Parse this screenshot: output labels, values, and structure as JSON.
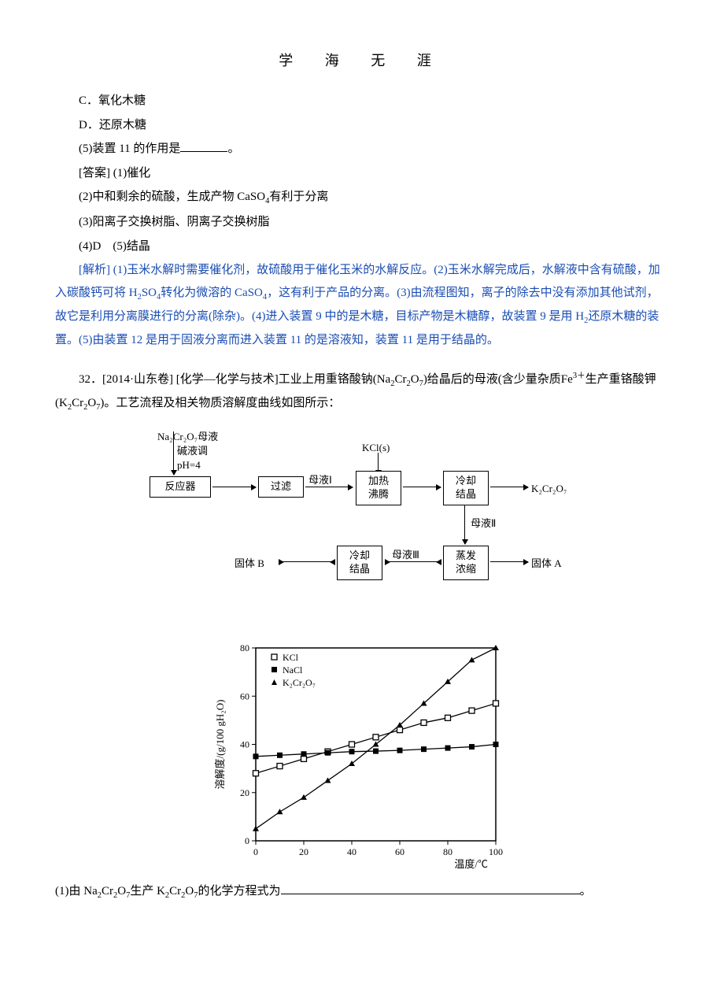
{
  "header": "学 海 无 涯",
  "optC": "C．氧化木糖",
  "optD": "D．还原木糖",
  "q5_prefix": "(5)装置 11 的作用是",
  "q5_suffix": "。",
  "ans_label": "[答案] (1)催化",
  "ans2": "(2)中和剩余的硫酸，生成产物 CaSO",
  "ans2_sub": "4",
  "ans2_tail": "有利于分离",
  "ans3": "(3)阳离子交换树脂、阴离子交换树脂",
  "ans4": "(4)D　(5)结晶",
  "explain_label": "[解析] ",
  "explain_text1": "(1)玉米水解时需要催化剂，故硫酸用于催化玉米的水解反应。(2)玉米水解完成后，水解液中含有硫酸，加入碳酸钙可将 H",
  "explain_H2SO4_2": "2",
  "explain_H2SO4_mid": "SO",
  "explain_H2SO4_4": "4",
  "explain_text2": "转化为微溶的 CaSO",
  "explain_CaSO4_4": "4",
  "explain_text3": "，这有利于产品的分离。(3)由流程图知，离子的除去中没有添加其他试剂，故它是利用分离膜进行的分离(除杂)。(4)进入装置 9 中的是木糖，目标产物是木糖醇，故装置 9 是用 H",
  "explain_H2_2": "2",
  "explain_text4": "还原木糖的装置。(5)由装置 12 是用于固液分离而进入装置 11 的是溶液知，装置 11 是用于结晶的。",
  "q32_prefix": "32．[2014·山东卷] [化学—化学与技术]工业上用重铬酸钠(Na",
  "q32_na2cr2o7_2a": "2",
  "q32_na2cr2o7_cr": "Cr",
  "q32_na2cr2o7_2b": "2",
  "q32_na2cr2o7_o": "O",
  "q32_na2cr2o7_7": "7",
  "q32_mid1": ")给晶后的母液(含少量杂质Fe",
  "q32_fe3": "3＋",
  "q32_mid2": "生产重铬酸钾(K",
  "q32_k2cr2o7_2a": "2",
  "q32_k2cr2o7_cr": "Cr",
  "q32_k2cr2o7_2b": "2",
  "q32_k2cr2o7_o": "O",
  "q32_k2cr2o7_7": "7",
  "q32_tail": ")。工艺流程及相关物质溶解度曲线如图所示：",
  "flow": {
    "feed1": "Na₂Cr₂O₇母液",
    "feed2": "碱液调",
    "feed3": "pH=4",
    "kcl": "KCl(s)",
    "box1": "反应器",
    "box2": "过滤",
    "lbl_my1": "母液Ⅰ",
    "box3a": "加热",
    "box3b": "沸腾",
    "box4a": "冷却",
    "box4b": "结晶",
    "out_k": "K₂Cr₂O₇",
    "lbl_my2": "母液Ⅱ",
    "box5a": "蒸发",
    "box5b": "浓缩",
    "out_a": "固体 A",
    "lbl_my3": "母液Ⅲ",
    "box6a": "冷却",
    "box6b": "结晶",
    "out_b": "固体 B"
  },
  "chart": {
    "xlabel": "温度/℃",
    "ylabel": "溶解度/(g/100 gH₂O)",
    "xlim": [
      0,
      100
    ],
    "ylim": [
      0,
      80
    ],
    "xtick_step": 20,
    "ytick_step": 20,
    "legend": [
      "KCl",
      "NaCl",
      "K₂Cr₂O₇"
    ],
    "markers": [
      "square-open",
      "square-filled",
      "triangle-filled"
    ],
    "series": {
      "KCl": [
        [
          0,
          28
        ],
        [
          10,
          31
        ],
        [
          20,
          34
        ],
        [
          30,
          37
        ],
        [
          40,
          40
        ],
        [
          50,
          43
        ],
        [
          60,
          46
        ],
        [
          70,
          49
        ],
        [
          80,
          51
        ],
        [
          90,
          54
        ],
        [
          100,
          57
        ]
      ],
      "NaCl": [
        [
          0,
          35
        ],
        [
          10,
          35.5
        ],
        [
          20,
          36
        ],
        [
          30,
          36.5
        ],
        [
          40,
          37
        ],
        [
          50,
          37.2
        ],
        [
          60,
          37.5
        ],
        [
          70,
          38
        ],
        [
          80,
          38.5
        ],
        [
          90,
          39
        ],
        [
          100,
          40
        ]
      ],
      "K2Cr2O7": [
        [
          0,
          5
        ],
        [
          10,
          12
        ],
        [
          20,
          18
        ],
        [
          30,
          25
        ],
        [
          40,
          32
        ],
        [
          50,
          40
        ],
        [
          60,
          48
        ],
        [
          70,
          57
        ],
        [
          80,
          66
        ],
        [
          90,
          75
        ],
        [
          100,
          80
        ]
      ]
    },
    "colors": {
      "axis": "#000",
      "grid": "#ccc",
      "line": "#000"
    }
  },
  "q1_prefix": "(1)由 Na",
  "q1_mid": "生产 K",
  "q1_tail": "的化学方程式为",
  "q1_end": "。"
}
